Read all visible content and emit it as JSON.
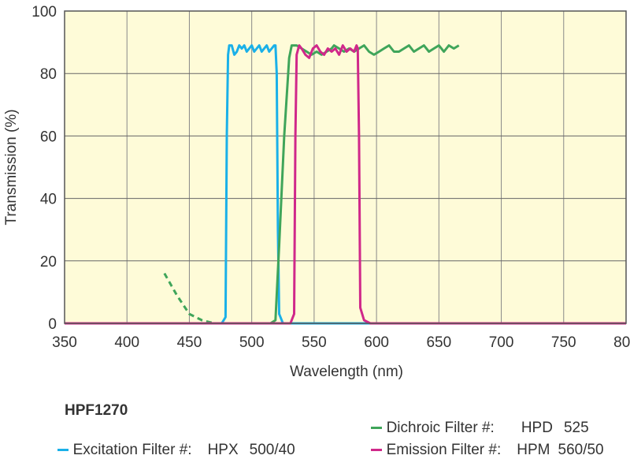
{
  "chart_data": {
    "type": "line",
    "xlabel": "Wavelength (nm)",
    "ylabel": "Transmission (%)",
    "xlim": [
      350,
      800
    ],
    "ylim": [
      0,
      100
    ],
    "xticks": [
      350,
      400,
      450,
      500,
      550,
      600,
      650,
      700,
      750,
      800
    ],
    "yticks": [
      0,
      20,
      40,
      60,
      80,
      100
    ],
    "grid": true,
    "background": "#fefbd8",
    "series": [
      {
        "name": "Excitation Filter #:",
        "color": "#1ab0e8",
        "style": "solid",
        "points": [
          [
            350,
            0
          ],
          [
            476,
            0
          ],
          [
            479,
            2
          ],
          [
            480,
            60
          ],
          [
            481,
            86
          ],
          [
            482,
            89
          ],
          [
            484,
            89
          ],
          [
            486,
            86
          ],
          [
            488,
            87
          ],
          [
            490,
            89
          ],
          [
            492,
            88
          ],
          [
            494,
            89
          ],
          [
            496,
            87
          ],
          [
            498,
            88
          ],
          [
            500,
            89
          ],
          [
            502,
            87
          ],
          [
            504,
            88
          ],
          [
            506,
            89
          ],
          [
            508,
            87
          ],
          [
            510,
            88
          ],
          [
            512,
            89
          ],
          [
            514,
            87
          ],
          [
            516,
            88
          ],
          [
            518,
            89
          ],
          [
            519,
            89
          ],
          [
            520,
            80
          ],
          [
            521,
            30
          ],
          [
            522,
            3
          ],
          [
            525,
            0
          ],
          [
            800,
            0
          ]
        ]
      },
      {
        "name": "Dichroic Filter #:",
        "color": "#3fa55a",
        "style": "solid",
        "points": [
          [
            350,
            0
          ],
          [
            515,
            0
          ],
          [
            519,
            1
          ],
          [
            522,
            25
          ],
          [
            526,
            60
          ],
          [
            530,
            85
          ],
          [
            532,
            89
          ],
          [
            536,
            89
          ],
          [
            540,
            88
          ],
          [
            544,
            87
          ],
          [
            548,
            86
          ],
          [
            552,
            87
          ],
          [
            556,
            86
          ],
          [
            560,
            87
          ],
          [
            564,
            88
          ],
          [
            566,
            89
          ],
          [
            570,
            88
          ],
          [
            574,
            87
          ],
          [
            578,
            88
          ],
          [
            582,
            87
          ],
          [
            586,
            88
          ],
          [
            590,
            89
          ],
          [
            594,
            87
          ],
          [
            598,
            86
          ],
          [
            602,
            87
          ],
          [
            606,
            88
          ],
          [
            610,
            89
          ],
          [
            614,
            87
          ],
          [
            618,
            87
          ],
          [
            622,
            88
          ],
          [
            626,
            89
          ],
          [
            630,
            87
          ],
          [
            634,
            88
          ],
          [
            638,
            89
          ],
          [
            642,
            87
          ],
          [
            646,
            88
          ],
          [
            650,
            89
          ],
          [
            654,
            87
          ],
          [
            658,
            89
          ],
          [
            662,
            88
          ],
          [
            666,
            89
          ]
        ]
      },
      {
        "name": "",
        "color": "#3fa55a",
        "style": "dashed",
        "points": [
          [
            430,
            16
          ],
          [
            440,
            9
          ],
          [
            450,
            3
          ],
          [
            460,
            1
          ],
          [
            470,
            0
          ]
        ]
      },
      {
        "name": "Emission Filter #:",
        "color": "#d0288a",
        "style": "solid",
        "points": [
          [
            350,
            0
          ],
          [
            531,
            0
          ],
          [
            534,
            3
          ],
          [
            535,
            60
          ],
          [
            536,
            86
          ],
          [
            538,
            89
          ],
          [
            540,
            88
          ],
          [
            543,
            86
          ],
          [
            546,
            85
          ],
          [
            549,
            88
          ],
          [
            552,
            89
          ],
          [
            555,
            87
          ],
          [
            558,
            86
          ],
          [
            561,
            88
          ],
          [
            564,
            87
          ],
          [
            567,
            88
          ],
          [
            570,
            86
          ],
          [
            573,
            89
          ],
          [
            576,
            87
          ],
          [
            579,
            88
          ],
          [
            582,
            87
          ],
          [
            584,
            89
          ],
          [
            585,
            88
          ],
          [
            586,
            60
          ],
          [
            587,
            5
          ],
          [
            590,
            1
          ],
          [
            595,
            0
          ],
          [
            800,
            0
          ]
        ]
      }
    ]
  },
  "legend": {
    "title": "HPF1270",
    "items": [
      {
        "label": "Excitation Filter #:",
        "code": "HPX",
        "value": "500/40",
        "color": "#1ab0e8"
      },
      {
        "label": "Dichroic Filter #:",
        "code": "HPD",
        "value": "525",
        "color": "#3fa55a"
      },
      {
        "label": "Emission Filter #:",
        "code": "HPM",
        "value": "560/50",
        "color": "#d0288a"
      }
    ]
  }
}
